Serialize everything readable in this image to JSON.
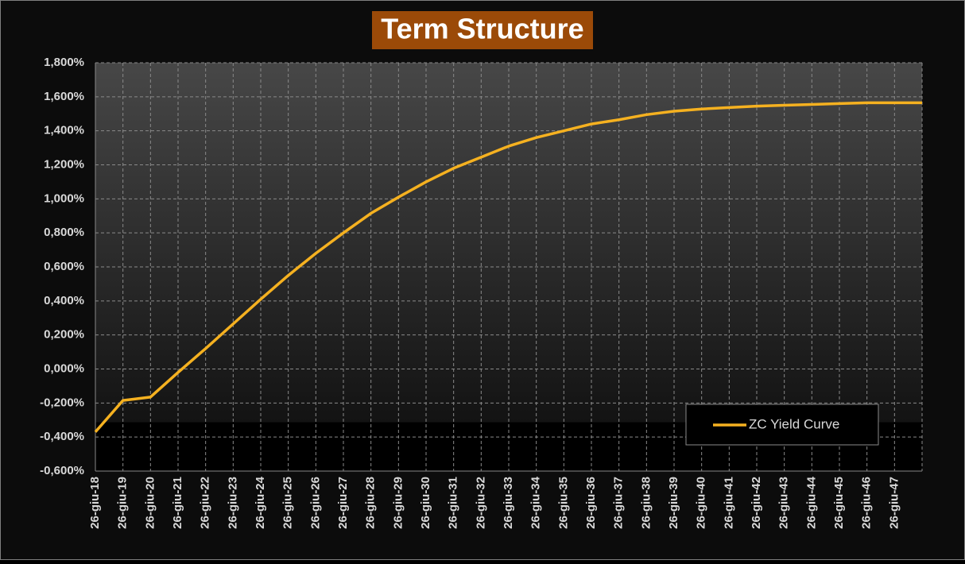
{
  "chart_data": {
    "type": "line",
    "title": "Term Structure",
    "categories": [
      "26-giu-18",
      "26-giu-19",
      "26-giu-20",
      "26-giu-21",
      "26-giu-22",
      "26-giu-23",
      "26-giu-24",
      "26-giu-25",
      "26-giu-26",
      "26-giu-27",
      "26-giu-28",
      "26-giu-29",
      "26-giu-30",
      "26-giu-31",
      "26-giu-32",
      "26-giu-33",
      "26-giu-34",
      "26-giu-35",
      "26-giu-36",
      "26-giu-37",
      "26-giu-38",
      "26-giu-39",
      "26-giu-40",
      "26-giu-41",
      "26-giu-42",
      "26-giu-43",
      "26-giu-44",
      "26-giu-45",
      "26-giu-46",
      "26-giu-47",
      null
    ],
    "series": [
      {
        "name": "ZC Yield Curve",
        "color": "#f5b120",
        "values": [
          -0.37,
          -0.185,
          -0.165,
          -0.02,
          0.12,
          0.265,
          0.41,
          0.55,
          0.68,
          0.8,
          0.915,
          1.01,
          1.1,
          1.18,
          1.245,
          1.31,
          1.36,
          1.4,
          1.44,
          1.465,
          1.495,
          1.515,
          1.528,
          1.537,
          1.545,
          1.55,
          1.555,
          1.56,
          1.565,
          1.565,
          1.565
        ]
      }
    ],
    "ylim": [
      -0.6,
      1.8
    ],
    "yticks": [
      {
        "value": -0.6,
        "label": "-0,600%"
      },
      {
        "value": -0.4,
        "label": "-0,400%"
      },
      {
        "value": -0.2,
        "label": "-0,200%"
      },
      {
        "value": 0,
        "label": "0,000%"
      },
      {
        "value": 0.2,
        "label": "0,200%"
      },
      {
        "value": 0.4,
        "label": "0,400%"
      },
      {
        "value": 0.6,
        "label": "0,600%"
      },
      {
        "value": 0.8,
        "label": "0,800%"
      },
      {
        "value": 1.0,
        "label": "1,000%"
      },
      {
        "value": 1.2,
        "label": "1,200%"
      },
      {
        "value": 1.4,
        "label": "1,400%"
      },
      {
        "value": 1.6,
        "label": "1,600%"
      },
      {
        "value": 1.8,
        "label": "1,800%"
      }
    ],
    "grid": true,
    "legend_position": "lower right"
  }
}
